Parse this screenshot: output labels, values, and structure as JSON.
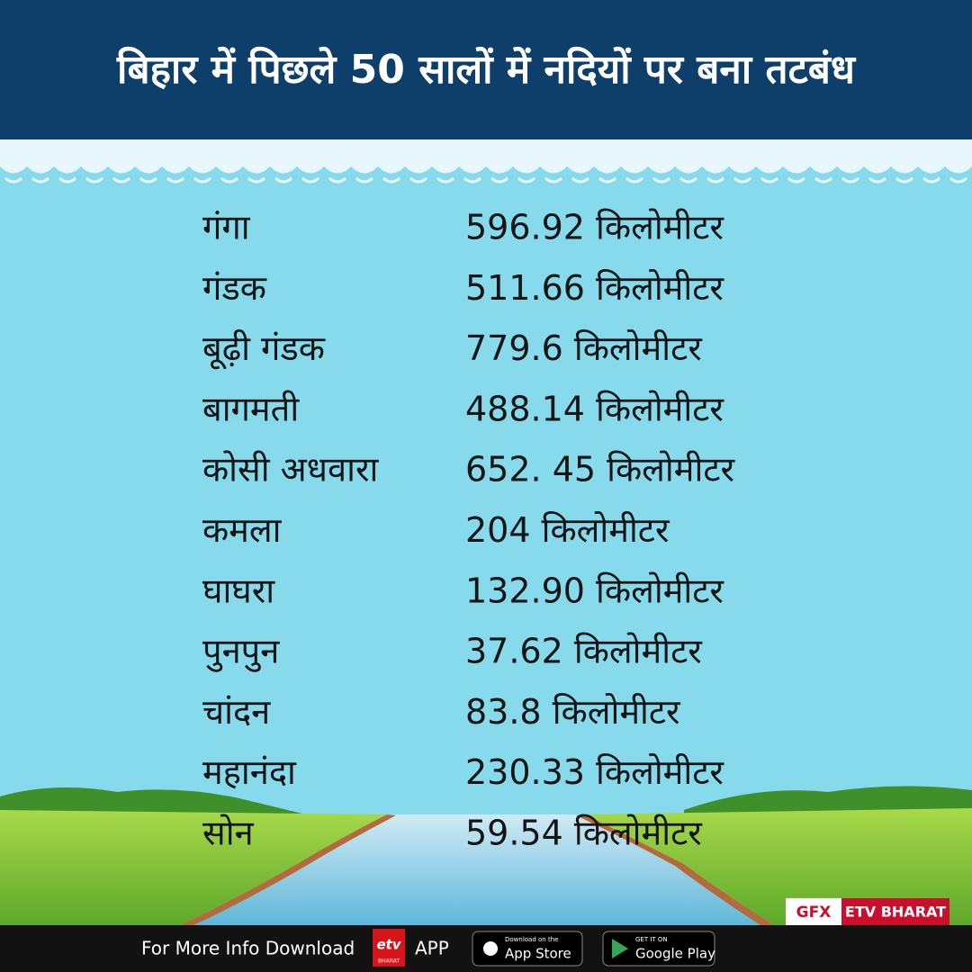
{
  "header": {
    "title": "बिहार में पिछले 50 सालों में नदियों पर बना तटबंध"
  },
  "table": {
    "rows": [
      [
        "गंगा",
        "596.92 किलोमीटर"
      ],
      [
        "गंडक",
        "511.66 किलोमीटर"
      ],
      [
        "बूढ़ी गंडक",
        "779.6 किलोमीटर"
      ],
      [
        "बागमती",
        "488.14 किलोमीटर"
      ],
      [
        "कोसी अधवारा",
        "652. 45 किलोमीटर"
      ],
      [
        "कमला",
        "204 किलोमीटर"
      ],
      [
        "घाघरा",
        "132.90 किलोमीटर"
      ],
      [
        "पुनपुन",
        "37.62 किलोमीटर"
      ],
      [
        "चांदन",
        "83.8 किलोमीटर"
      ],
      [
        "महानंदा",
        "230.33 किलोमीटर"
      ],
      [
        "सोन",
        "59.54 किलोमीटर"
      ]
    ]
  },
  "credit": {
    "gfx": "GFX",
    "brand": "ETV BHARAT"
  },
  "footer": {
    "text": "For More Info Download",
    "logo_top": "etv",
    "logo_bottom": "BHARAT",
    "app": "APP",
    "appstore_small": "Download on the",
    "appstore": "App Store",
    "googleplay_small": "GET IT ON",
    "googleplay": "Google Play"
  }
}
